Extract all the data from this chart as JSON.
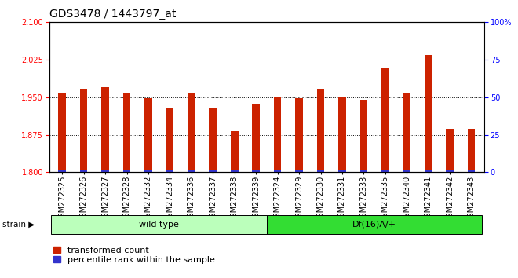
{
  "title": "GDS3478 / 1443797_at",
  "samples": [
    "GSM272325",
    "GSM272326",
    "GSM272327",
    "GSM272328",
    "GSM272332",
    "GSM272334",
    "GSM272336",
    "GSM272337",
    "GSM272338",
    "GSM272339",
    "GSM272324",
    "GSM272329",
    "GSM272330",
    "GSM272331",
    "GSM272333",
    "GSM272335",
    "GSM272340",
    "GSM272341",
    "GSM272342",
    "GSM272343"
  ],
  "transformed_counts": [
    1.96,
    1.967,
    1.971,
    1.96,
    1.948,
    1.93,
    1.959,
    1.93,
    1.882,
    1.935,
    1.95,
    1.949,
    1.967,
    1.95,
    1.945,
    2.008,
    1.957,
    2.035,
    1.887,
    1.887
  ],
  "percentile_ranks": [
    3,
    10,
    8,
    11,
    11,
    10,
    10,
    9,
    9,
    9,
    10,
    10,
    10,
    10,
    9,
    9,
    10,
    9,
    9,
    3
  ],
  "y_min": 1.8,
  "y_max": 2.1,
  "y_ticks_left": [
    1.8,
    1.875,
    1.95,
    2.025,
    2.1
  ],
  "y_ticks_right": [
    0,
    25,
    50,
    75,
    100
  ],
  "bar_color_red": "#cc2200",
  "bar_color_blue": "#3333cc",
  "wild_type_count": 10,
  "groups": [
    {
      "label": "wild type",
      "start": 0,
      "end": 10,
      "color": "#bbffbb"
    },
    {
      "label": "Df(16)A/+",
      "start": 10,
      "end": 20,
      "color": "#33dd33"
    }
  ],
  "group_row_label": "strain",
  "legend_items": [
    {
      "color": "#cc2200",
      "label": "transformed count"
    },
    {
      "color": "#3333cc",
      "label": "percentile rank within the sample"
    }
  ],
  "bar_width": 0.35,
  "background_color": "#ffffff",
  "plot_bg": "#ffffff",
  "dotted_grid_color": "#000000",
  "title_fontsize": 10,
  "tick_fontsize": 7,
  "label_fontsize": 8
}
